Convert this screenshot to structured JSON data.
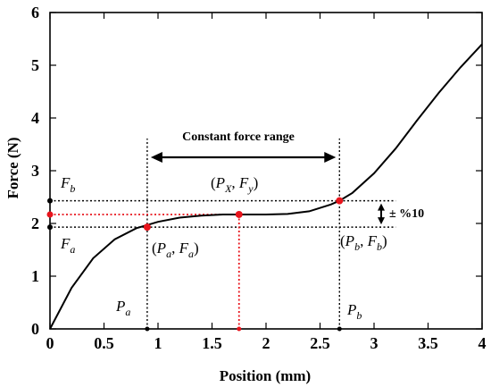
{
  "chart_data": {
    "type": "line",
    "xlabel": "Position (mm)",
    "ylabel": "Force (N)",
    "xlim": [
      0,
      4
    ],
    "ylim": [
      0,
      6
    ],
    "x_ticks": [
      "0",
      "0.5",
      "1",
      "1.5",
      "2",
      "2.5",
      "3",
      "3.5",
      "4"
    ],
    "y_ticks": [
      "0",
      "1",
      "2",
      "3",
      "4",
      "5",
      "6"
    ],
    "grid": false,
    "series": [
      {
        "x": [
          0,
          0.2,
          0.4,
          0.6,
          0.8,
          0.9,
          1.0,
          1.2,
          1.4,
          1.6,
          1.75,
          1.9,
          2.0,
          2.2,
          2.4,
          2.6,
          2.68,
          2.8,
          3.0,
          3.2,
          3.4,
          3.6,
          3.8,
          4.0
        ],
        "y": [
          0,
          0.78,
          1.34,
          1.7,
          1.91,
          1.97,
          2.03,
          2.11,
          2.15,
          2.17,
          2.17,
          2.17,
          2.17,
          2.18,
          2.23,
          2.36,
          2.43,
          2.58,
          2.95,
          3.42,
          3.96,
          4.48,
          4.96,
          5.4
        ]
      }
    ],
    "points": [
      {
        "x": 0.9,
        "y": 1.93
      },
      {
        "x": 1.75,
        "y": 2.17
      },
      {
        "x": 2.68,
        "y": 2.43
      }
    ],
    "reference_lines": {
      "Fa": 1.93,
      "Fb": 2.43,
      "Fy": 2.17,
      "Pa": 0.9,
      "Pb": 2.68,
      "Px": 1.75,
      "horizontal_extent_x": 3.2
    },
    "annotations": {
      "constant_force_range": "Constant force range",
      "tolerance": "± %10",
      "point_a": "(Pₐ, Fₐ)",
      "point_b": "(P_b, F_b)",
      "point_x": "(P_X, F_y)",
      "fb_label": "F_b",
      "fa_label": "F_a",
      "pa_label": "P_a",
      "pb_label": "P_b"
    }
  }
}
